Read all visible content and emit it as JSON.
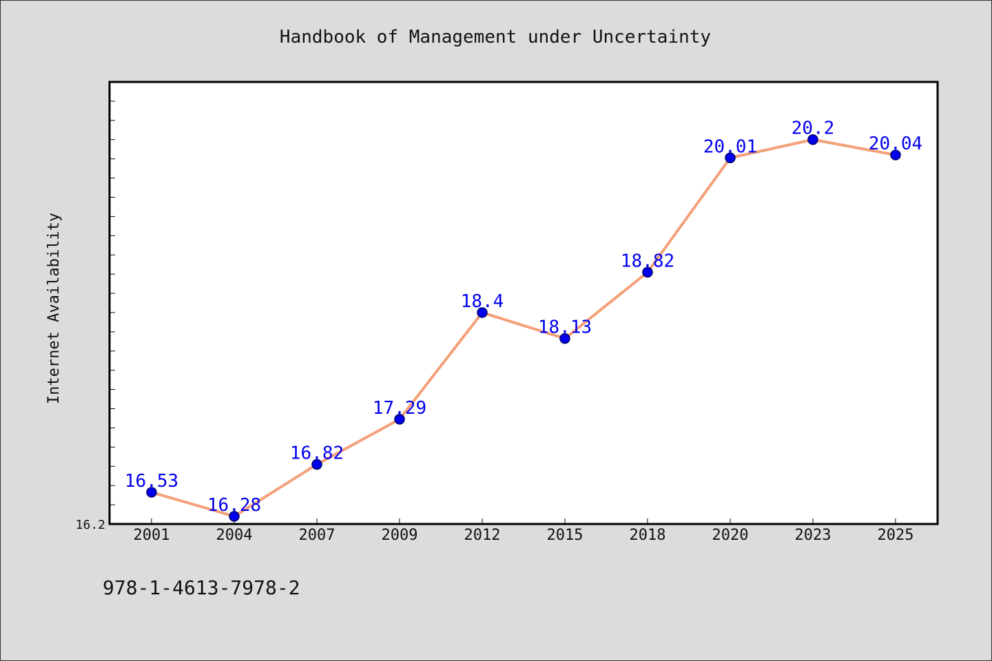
{
  "chart_data": {
    "type": "line",
    "title": "Handbook of Management under Uncertainty",
    "ylabel": "Internet Availability",
    "xlabel": "",
    "categories": [
      "2001",
      "2004",
      "2007",
      "2009",
      "2012",
      "2015",
      "2018",
      "2020",
      "2023",
      "2025"
    ],
    "series": [
      {
        "values": [
          16.53,
          16.28,
          16.82,
          17.29,
          18.4,
          18.13,
          18.82,
          20.01,
          20.2,
          20.04
        ]
      }
    ],
    "data_labels": [
      "16.53",
      "16.28",
      "16.82",
      "17.29",
      "18.4",
      "18.13",
      "18.82",
      "20.01",
      "20.2",
      "20.04"
    ],
    "ylim": [
      16.2,
      20.8
    ],
    "ytick_labels": [
      "16.2"
    ],
    "grid": false,
    "colors": {
      "line": "#f4a07a",
      "marker": "#0000ee",
      "marker_edge": "#000066",
      "data_label": "#0000ee",
      "plot_background": "#ffffff",
      "figure_background": "#dcdcdc"
    }
  },
  "footer": {
    "isbn": "978-1-4613-7978-2"
  }
}
